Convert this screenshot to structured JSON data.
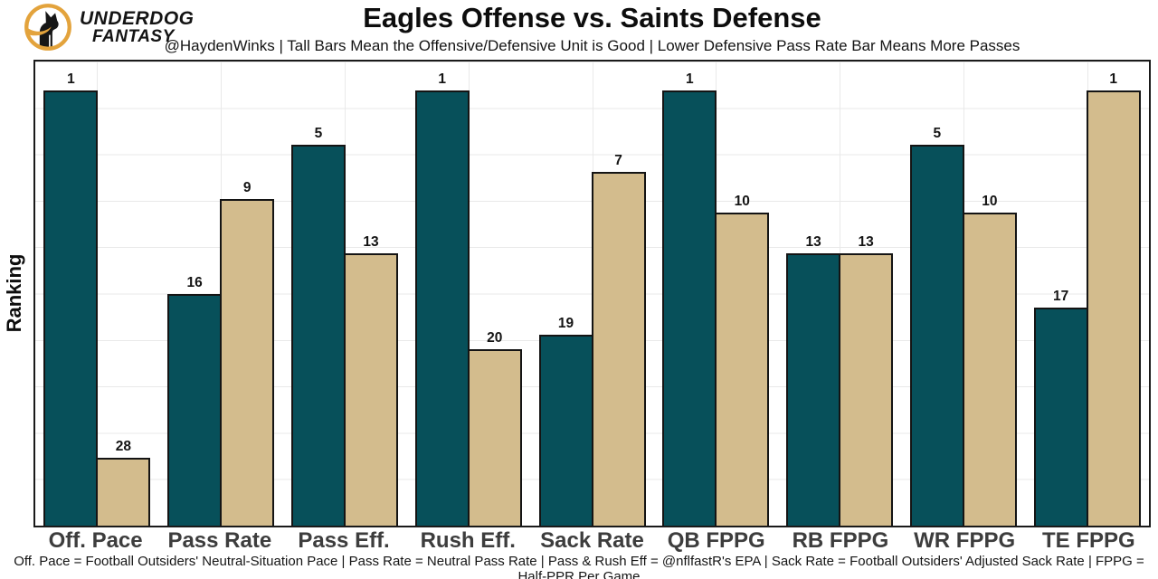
{
  "header": {
    "logo": {
      "name1": "UNDERDOG",
      "name2": "FANTASY",
      "gold": "#E3A33C"
    },
    "title": "Eagles Offense vs. Saints Defense",
    "subtitle": "@HaydenWinks | Tall Bars Mean the Offensive/Defensive Unit is Good | Lower Defensive Pass Rate Bar Means More Passes"
  },
  "chart_data": {
    "type": "bar",
    "title": "Eagles Offense vs. Saints Defense",
    "subtitle": "@HaydenWinks | Tall Bars Mean the Offensive/Defensive Unit is Good | Lower Defensive Pass Rate Bar Means More Passes",
    "ylabel": "Ranking",
    "categories": [
      "Off. Pace",
      "Pass Rate",
      "Pass Eff.",
      "Rush Eff.",
      "Sack Rate",
      "QB FPPG",
      "RB FPPG",
      "WR FPPG",
      "TE FPPG"
    ],
    "series": [
      {
        "name": "Eagles Offense",
        "color": "#07505A",
        "values": [
          1,
          16,
          5,
          1,
          19,
          1,
          13,
          5,
          17
        ]
      },
      {
        "name": "Saints Defense",
        "color": "#D3BC8D",
        "values": [
          28,
          9,
          13,
          20,
          7,
          10,
          13,
          10,
          1
        ]
      }
    ],
    "rank_axis": {
      "best_rank": 1,
      "worst_rank": 32,
      "note": "lower rank number = taller bar",
      "tick_labels_shown": false
    },
    "bar_labels": "rank value shown above each bar",
    "legend_position": "none",
    "grid": {
      "horizontal": true,
      "vertical_at_category_centers": true,
      "color": "#e9e9e9"
    }
  },
  "footer": {
    "text": "Off. Pace = Football Outsiders' Neutral-Situation Pace | Pass Rate = Neutral Pass Rate | Pass & Rush Eff = @nflfastR's EPA | Sack Rate = Football Outsiders' Adjusted Sack Rate | FPPG = Half-PPR Per Game"
  }
}
